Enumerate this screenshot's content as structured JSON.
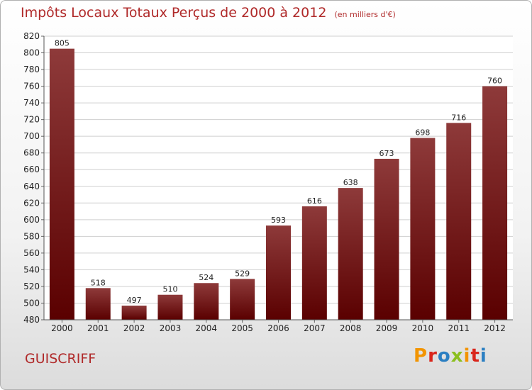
{
  "title": "Impôts Locaux Totaux Perçus de 2000 à 2012",
  "subtitle": "(en milliers d'€)",
  "commune": "GUISCRIFF",
  "logo": {
    "letters": [
      "P",
      "r",
      "o",
      "x",
      "i",
      "t",
      "i"
    ],
    "colors": [
      "#f29400",
      "#d9261c",
      "#2b7fc2",
      "#8bbf1f",
      "#f29400",
      "#d9261c",
      "#2b7fc2"
    ]
  },
  "colors": {
    "accent": "#b02a2a",
    "bar_top": "#8e3a3a",
    "bar_bottom": "#5a0000"
  },
  "chart_data": {
    "type": "bar",
    "categories": [
      "2000",
      "2001",
      "2002",
      "2003",
      "2004",
      "2005",
      "2006",
      "2007",
      "2008",
      "2009",
      "2010",
      "2011",
      "2012"
    ],
    "values": [
      805,
      518,
      497,
      510,
      524,
      529,
      593,
      616,
      638,
      673,
      698,
      716,
      760
    ],
    "ylim": [
      480,
      820
    ],
    "yticks": [
      480,
      500,
      520,
      540,
      560,
      580,
      600,
      620,
      640,
      660,
      680,
      700,
      720,
      740,
      760,
      780,
      800,
      820
    ],
    "grid": true
  }
}
